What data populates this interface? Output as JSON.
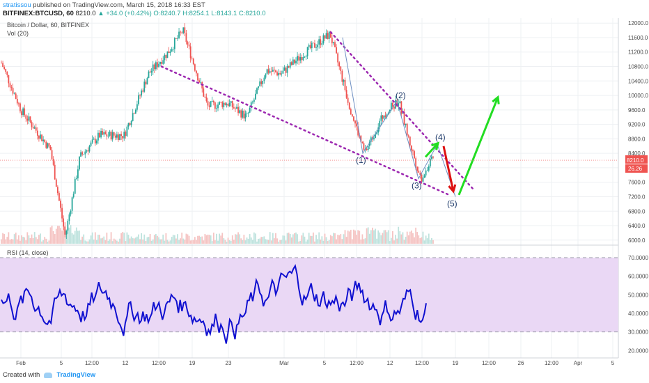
{
  "header": {
    "author": "stratissou",
    "published": "published on TradingView.com, March 15, 2018 16:33 EST",
    "symbol": "BITFINEX:BTCUSD, 60",
    "last": "8210.0",
    "change": "▲ +34.0 (+0.42%)",
    "ohlc": "O:8240.7  H:8254.1  L:8143.1  C:8210.0"
  },
  "panel_labels": {
    "main": "Bitcoin / Dollar, 60, BITFINEX",
    "vol": "Vol (20)",
    "rsi": "RSI (14, close)"
  },
  "footer": {
    "created_with": "Created with",
    "brand": "TradingView"
  },
  "colors": {
    "up": "#26a69a",
    "down": "#ef5350",
    "rsi_line": "#1010d0",
    "rsi_band": "#ead8f5",
    "trend": "#9c27b0",
    "wave": "#6d8fc2",
    "arrow_green": "#22dd22",
    "arrow_red": "#dd1111",
    "price_tag": "#ef5350"
  },
  "chart_data": {
    "type": "candlestick",
    "symbol": "BTCUSD",
    "exchange": "BITFINEX",
    "interval": "60",
    "x_ticks": [
      "Feb",
      "5",
      "12:00",
      "12",
      "12:00",
      "19",
      "23",
      "Mar",
      "5",
      "12:00",
      "12",
      "12:00",
      "19",
      "12:00",
      "26",
      "12:00",
      "Apr",
      "5"
    ],
    "y_ticks": [
      12000,
      11600,
      11200,
      10800,
      10400,
      10000,
      9600,
      9200,
      8800,
      8400,
      8000,
      7600,
      7200,
      6800,
      6400,
      6000
    ],
    "ylim": [
      5900,
      12100
    ],
    "last_price": "8210.0",
    "last_volume": "26.26",
    "price_path": [
      [
        0,
        10900
      ],
      [
        0.04,
        9600
      ],
      [
        0.1,
        8500
      ],
      [
        0.13,
        6100
      ],
      [
        0.16,
        8300
      ],
      [
        0.2,
        8900
      ],
      [
        0.25,
        8900
      ],
      [
        0.3,
        10600
      ],
      [
        0.34,
        11200
      ],
      [
        0.37,
        11800
      ],
      [
        0.42,
        9700
      ],
      [
        0.46,
        9800
      ],
      [
        0.5,
        9400
      ],
      [
        0.54,
        10700
      ],
      [
        0.57,
        10600
      ],
      [
        0.62,
        11200
      ],
      [
        0.67,
        11700
      ],
      [
        0.71,
        9700
      ],
      [
        0.74,
        8400
      ],
      [
        0.78,
        9500
      ],
      [
        0.81,
        9850
      ],
      [
        0.83,
        8800
      ],
      [
        0.855,
        7700
      ],
      [
        0.88,
        8250
      ]
    ],
    "wave_labels": [
      "(1)",
      "(2)",
      "(3)",
      "(4)",
      "(5)"
    ],
    "wave_points": [
      [
        8400,
        0.74
      ],
      [
        9850,
        0.81
      ],
      [
        7700,
        0.855
      ],
      [
        8650,
        0.905
      ],
      [
        7200,
        0.935
      ]
    ],
    "rsi": {
      "title": "RSI (14, close)",
      "y_ticks": [
        70,
        60,
        50,
        40,
        30,
        20
      ],
      "ylim": [
        16,
        76
      ],
      "upper_band": 70,
      "lower_band": 30
    },
    "grid": true
  }
}
